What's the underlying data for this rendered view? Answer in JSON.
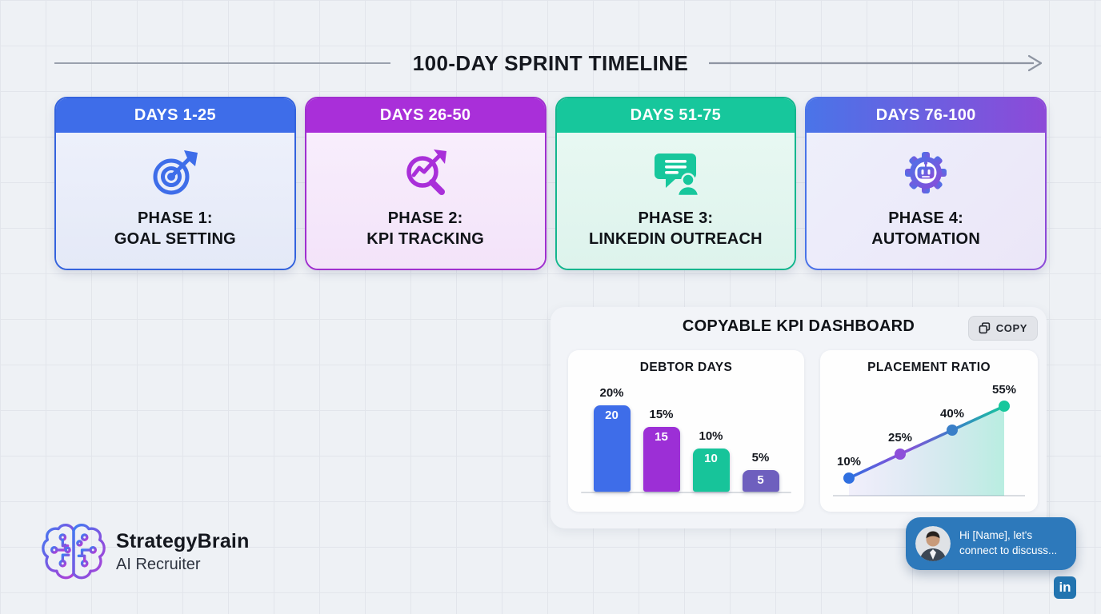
{
  "page": {
    "background": "#eef1f5",
    "grid_color": "#e2e5eb"
  },
  "timeline": {
    "title": "100-DAY SPRINT TIMELINE",
    "arrow_color": "#8e95a2"
  },
  "phases": [
    {
      "days": "DAYS 1-25",
      "line1": "PHASE 1:",
      "line2": "GOAL SETTING",
      "icon": "target-bullseye-icon",
      "accent": "#3e6de9",
      "body_bg": "#e9edf9"
    },
    {
      "days": "DAYS 26-50",
      "line1": "PHASE 2:",
      "line2": "KPI TRACKING",
      "icon": "magnifier-trend-icon",
      "accent": "#a92fd9",
      "body_bg": "#f7eafb"
    },
    {
      "days": "DAYS 51-75",
      "line1": "PHASE 3:",
      "line2": "LINKEDIN OUTREACH",
      "icon": "chat-person-icon",
      "accent": "#17c79c",
      "body_bg": "#e5f7f1"
    },
    {
      "days": "DAYS 76-100",
      "line1": "PHASE 4:",
      "line2": "AUTOMATION",
      "icon": "gear-robot-icon",
      "accent_from": "#4a74e8",
      "accent_to": "#8d4ad8",
      "body_bg": "#ebecf9"
    }
  ],
  "dashboard": {
    "title": "COPYABLE KPI DASHBOARD",
    "copy_button_label": "COPY"
  },
  "chart_data": [
    {
      "type": "bar",
      "title": "DEBTOR DAYS",
      "values": [
        20,
        15,
        10,
        5
      ],
      "labels": [
        "20%",
        "15%",
        "10%",
        "5%"
      ],
      "bar_value_labels": [
        "20",
        "15",
        "10",
        "5"
      ],
      "bar_colors": [
        "#3e6de9",
        "#9c2fd6",
        "#17c49a",
        "#6e5fbe"
      ],
      "ylim": [
        0,
        22
      ],
      "unit": "percent",
      "grid": false,
      "legend": false
    },
    {
      "type": "line",
      "title": "PLACEMENT RATIO",
      "values": [
        10,
        25,
        40,
        55
      ],
      "labels": [
        "10%",
        "25%",
        "40%",
        "55%"
      ],
      "point_colors": [
        "#2f6fe0",
        "#8d4fd9",
        "#3a7fc8",
        "#17c79c"
      ],
      "line_gradient": [
        "#2f6fe0",
        "#8d4fd9",
        "#3a7fc8",
        "#17c79c"
      ],
      "area_fill": true,
      "ylim": [
        0,
        60
      ],
      "unit": "percent",
      "grid": false,
      "legend": false
    }
  ],
  "brand": {
    "name": "StrategyBrain",
    "subtitle": "AI Recruiter"
  },
  "chat_widget": {
    "message": "Hi [Name], let's connect to discuss...",
    "bubble_color": "#2d79bb"
  },
  "linkedin_badge": {
    "label": "in",
    "color": "#2274b0"
  }
}
